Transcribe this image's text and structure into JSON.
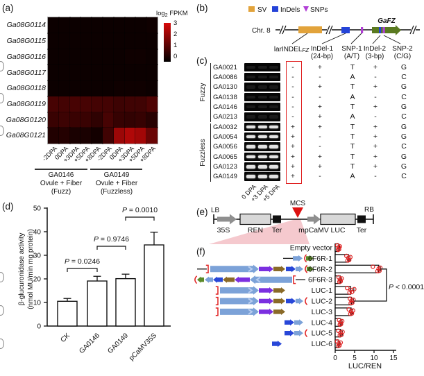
{
  "panel_labels": {
    "a": "(a)",
    "b": "(b)",
    "c": "(c)",
    "d": "(d)",
    "e": "(e)",
    "f": "(f)"
  },
  "heatmap": {
    "legend_title_pre": "log",
    "legend_title_sub": "2",
    "legend_title_post": " FPKM",
    "legend_ticks": [
      "3",
      "2",
      "1",
      "0"
    ],
    "genes": [
      "Ga08G0114",
      "Ga08G0115",
      "Ga08G0116",
      "Ga08G0117",
      "Ga08G0118",
      "Ga08G0119",
      "Ga08G0120",
      "Ga08G0121"
    ],
    "col_labels": [
      "-2DPA",
      "0DPA",
      "+3DPA",
      "+5DPA",
      "+8DPA",
      "-2DPA",
      "0DPA",
      "+3DPA",
      "+5DPA",
      "+8DPA"
    ],
    "group1": {
      "name": "GA0146",
      "tissue": "Ovule + Fiber",
      "pheno": "(Fuzz)"
    },
    "group2": {
      "name": "GA0149",
      "tissue": "Ovule + Fiber",
      "pheno": "(Fuzzless)"
    },
    "vmin": 0,
    "vmax": 3,
    "values": [
      [
        0.05,
        0.05,
        0.05,
        0.05,
        0.05,
        0.05,
        0.05,
        0.05,
        0.05,
        0.1
      ],
      [
        0.05,
        0.05,
        0.05,
        0.05,
        0.05,
        0.05,
        0.05,
        0.05,
        0.05,
        0.05
      ],
      [
        0.05,
        0.05,
        0.05,
        0.05,
        0.05,
        0.05,
        0.05,
        0.1,
        0.1,
        0.05
      ],
      [
        0.05,
        0.05,
        0.05,
        0.05,
        0.05,
        0.05,
        0.05,
        0.05,
        0.05,
        0.05
      ],
      [
        0.05,
        0.05,
        0.05,
        0.05,
        0.05,
        0.05,
        0.1,
        0.1,
        0.1,
        0.05
      ],
      [
        0.9,
        0.85,
        0.9,
        0.9,
        0.85,
        0.85,
        0.75,
        0.8,
        0.8,
        1.0
      ],
      [
        0.7,
        0.75,
        0.7,
        0.7,
        0.55,
        0.9,
        0.65,
        0.6,
        0.65,
        0.45
      ],
      [
        0.35,
        0.4,
        0.25,
        0.25,
        0.15,
        0.8,
        2.1,
        2.4,
        2.2,
        1.4
      ]
    ]
  },
  "locus_map": {
    "legend": [
      {
        "label": "SV"
      },
      {
        "label": "InDels"
      },
      {
        "label": "SNPs"
      }
    ],
    "legend_colors": {
      "sv": "#E2A33B",
      "indel": "#2443D8",
      "snp": "#B13FD6"
    },
    "chrom": "Chr. 8",
    "gene": "GaFZ",
    "gene_color": "#5A7A20",
    "labels": {
      "sv_pre": "larINDEL",
      "sv_sub": "FZ",
      "indel1_1": "InDel-1",
      "indel1_2": "(24-bp)",
      "snp1_1": "SNP-1",
      "snp1_2": "(A/T)",
      "indel2_1": "InDel-2",
      "indel2_2": "(3-bp)",
      "snp2_1": "SNP-2",
      "snp2_2": "(C/G)"
    }
  },
  "genotypes": {
    "group_labels": [
      "Fuzzy",
      "Fuzzless"
    ],
    "lane_labels": [
      "0 DPA",
      "+3 DPA",
      "+5 DPA"
    ],
    "rows": [
      {
        "id": "GA0021",
        "group": "Fuzzy",
        "gel": "faint",
        "calls": [
          "-",
          "+",
          "T",
          "+",
          "G"
        ]
      },
      {
        "id": "GA0086",
        "group": "Fuzzy",
        "gel": "faint",
        "calls": [
          "-",
          "-",
          "A",
          "-",
          "C"
        ]
      },
      {
        "id": "GA0130",
        "group": "Fuzzy",
        "gel": "faint",
        "calls": [
          "-",
          "+",
          "T",
          "+",
          "G"
        ]
      },
      {
        "id": "GA0138",
        "group": "Fuzzy",
        "gel": "faint",
        "calls": [
          "-",
          "-",
          "A",
          "-",
          "C"
        ]
      },
      {
        "id": "GA0146",
        "group": "Fuzzy",
        "gel": "faint",
        "calls": [
          "-",
          "+",
          "T",
          "+",
          "G"
        ]
      },
      {
        "id": "GA0213",
        "group": "Fuzzy",
        "gel": "faint",
        "calls": [
          "-",
          "+",
          "A",
          "-",
          "C"
        ]
      },
      {
        "id": "GA0032",
        "group": "Fuzzless",
        "gel": "bright",
        "calls": [
          "+",
          "+",
          "T",
          "+",
          "G"
        ]
      },
      {
        "id": "GA0054",
        "group": "Fuzzless",
        "gel": "bright",
        "calls": [
          "+",
          "-",
          "T",
          "+",
          "G"
        ]
      },
      {
        "id": "GA0056",
        "group": "Fuzzless",
        "gel": "bright",
        "calls": [
          "+",
          "-",
          "T",
          "+",
          "C"
        ]
      },
      {
        "id": "GA0065",
        "group": "Fuzzless",
        "gel": "bright",
        "calls": [
          "+",
          "+",
          "T",
          "+",
          "G"
        ]
      },
      {
        "id": "GA0123",
        "group": "Fuzzless",
        "gel": "bright",
        "calls": [
          "+",
          "+",
          "T",
          "+",
          "G"
        ]
      },
      {
        "id": "GA0149",
        "group": "Fuzzless",
        "gel": "bright",
        "calls": [
          "+",
          "-",
          "A",
          "-",
          "C"
        ]
      }
    ]
  },
  "gus_chart": {
    "ylabel1": "β-glucuronidase activity",
    "ylabel2": "(nmol MU/min mg protein)",
    "yticks": [
      0,
      10,
      20,
      30,
      40,
      50
    ],
    "ymax": 50,
    "categories": [
      "CK",
      "GA0146",
      "GA0149",
      "pCaMV35S"
    ],
    "values": [
      10.5,
      19.1,
      20.1,
      34.4
    ],
    "errors": [
      1.2,
      2.0,
      1.9,
      5.4
    ],
    "comparisons": [
      {
        "p": "P",
        "rest": " = 0.0246",
        "from": 0,
        "to": 1
      },
      {
        "p": "P",
        "rest": " = 0.9746",
        "from": 1,
        "to": 2
      },
      {
        "p": "P",
        "rest": " = 0.0010",
        "from": 2,
        "to": 3
      }
    ]
  },
  "construct_map": {
    "lb": "LB",
    "rb": "RB",
    "mcs": "MCS",
    "labels": [
      "35S",
      "REN",
      "Ter",
      "mpCaMV",
      "LUC",
      "Ter"
    ]
  },
  "luc_chart": {
    "categories": [
      "Empty vector",
      "6F6R-1",
      "6F6R-2",
      "6F6R-3",
      "LUC-1",
      "LUC-2",
      "LUC-3",
      "LUC-4",
      "LUC-5",
      "LUC-6"
    ],
    "values": [
      0.9,
      3.4,
      11.2,
      1.3,
      4.0,
      4.2,
      4.1,
      1.4,
      1.4,
      0.9
    ],
    "errors": [
      0.25,
      0.4,
      0.45,
      0.3,
      0.8,
      0.5,
      0.45,
      0.35,
      0.45,
      0.3
    ],
    "points": [
      [
        0.55,
        0.75,
        0.9,
        1.0,
        1.2
      ],
      [
        2.9,
        3.2,
        3.4,
        3.6,
        3.9
      ],
      [
        9.7,
        10.9,
        11.2,
        11.4,
        11.6
      ],
      [
        0.9,
        1.1,
        1.3,
        1.4,
        1.7
      ],
      [
        3.1,
        3.7,
        4.0,
        4.3,
        4.9
      ],
      [
        3.8,
        4.0,
        4.2,
        4.4,
        4.7
      ],
      [
        3.5,
        3.9,
        4.1,
        4.3,
        4.6
      ],
      [
        1.0,
        1.2,
        1.4,
        1.5,
        1.8
      ],
      [
        0.8,
        1.2,
        1.4,
        1.6,
        1.9
      ],
      [
        0.5,
        0.8,
        0.9,
        1.1,
        1.4
      ]
    ],
    "xticks": [
      0,
      5,
      10,
      15
    ],
    "xmax": 15,
    "xlabel": "LUC/REN",
    "pvalue_p": "P",
    "pvalue_rest": " < 0.0001",
    "point_color": "#DD2222"
  },
  "chart_data": [
    {
      "type": "heatmap",
      "title": "log2 FPKM",
      "rows": [
        "Ga08G0114",
        "Ga08G0115",
        "Ga08G0116",
        "Ga08G0117",
        "Ga08G0118",
        "Ga08G0119",
        "Ga08G0120",
        "Ga08G0121"
      ],
      "columns": [
        "GA0146 -2DPA",
        "GA0146 0DPA",
        "GA0146 +3DPA",
        "GA0146 +5DPA",
        "GA0146 +8DPA",
        "GA0149 -2DPA",
        "GA0149 0DPA",
        "GA0149 +3DPA",
        "GA0149 +5DPA",
        "GA0149 +8DPA"
      ],
      "scale": [
        0,
        3
      ],
      "values": [
        [
          0.05,
          0.05,
          0.05,
          0.05,
          0.05,
          0.05,
          0.05,
          0.05,
          0.05,
          0.1
        ],
        [
          0.05,
          0.05,
          0.05,
          0.05,
          0.05,
          0.05,
          0.05,
          0.05,
          0.05,
          0.05
        ],
        [
          0.05,
          0.05,
          0.05,
          0.05,
          0.05,
          0.05,
          0.05,
          0.1,
          0.1,
          0.05
        ],
        [
          0.05,
          0.05,
          0.05,
          0.05,
          0.05,
          0.05,
          0.05,
          0.05,
          0.05,
          0.05
        ],
        [
          0.05,
          0.05,
          0.05,
          0.05,
          0.05,
          0.05,
          0.1,
          0.1,
          0.1,
          0.05
        ],
        [
          0.9,
          0.85,
          0.9,
          0.9,
          0.85,
          0.85,
          0.75,
          0.8,
          0.8,
          1.0
        ],
        [
          0.7,
          0.75,
          0.7,
          0.7,
          0.55,
          0.9,
          0.65,
          0.6,
          0.65,
          0.45
        ],
        [
          0.35,
          0.4,
          0.25,
          0.25,
          0.15,
          0.8,
          2.1,
          2.4,
          2.2,
          1.4
        ]
      ]
    },
    {
      "type": "bar",
      "title": "",
      "ylabel": "β-glucuronidase activity (nmol MU/min mg protein)",
      "ylim": [
        0,
        50
      ],
      "categories": [
        "CK",
        "GA0146",
        "GA0149",
        "pCaMV35S"
      ],
      "values": [
        10.5,
        19.1,
        20.1,
        34.4
      ],
      "errors": [
        1.2,
        2.0,
        1.9,
        5.4
      ],
      "annotations": [
        "P = 0.0246 (CK vs GA0146)",
        "P = 0.9746 (GA0146 vs GA0149)",
        "P = 0.0010 (GA0149 vs pCaMV35S)"
      ]
    },
    {
      "type": "bar",
      "orientation": "horizontal",
      "xlabel": "LUC/REN",
      "xlim": [
        0,
        15
      ],
      "categories": [
        "Empty vector",
        "6F6R-1",
        "6F6R-2",
        "6F6R-3",
        "LUC-1",
        "LUC-2",
        "LUC-3",
        "LUC-4",
        "LUC-5",
        "LUC-6"
      ],
      "values": [
        0.9,
        3.4,
        11.2,
        1.3,
        4.0,
        4.2,
        4.1,
        1.4,
        1.4,
        0.9
      ],
      "annotations": [
        "P < 0.0001 (6F6R-2 vs LUC-2)"
      ]
    },
    {
      "type": "table",
      "title": "Genotype calls per accession",
      "columns": [
        "larINDELFZ",
        "InDel-1 (24-bp)",
        "SNP-1 (A/T)",
        "InDel-2 (3-bp)",
        "SNP-2 (C/G)"
      ],
      "rows": [
        {
          "id": "GA0021",
          "phenotype": "Fuzzy",
          "calls": [
            "-",
            "+",
            "T",
            "+",
            "G"
          ]
        },
        {
          "id": "GA0086",
          "phenotype": "Fuzzy",
          "calls": [
            "-",
            "-",
            "A",
            "-",
            "C"
          ]
        },
        {
          "id": "GA0130",
          "phenotype": "Fuzzy",
          "calls": [
            "-",
            "+",
            "T",
            "+",
            "G"
          ]
        },
        {
          "id": "GA0138",
          "phenotype": "Fuzzy",
          "calls": [
            "-",
            "-",
            "A",
            "-",
            "C"
          ]
        },
        {
          "id": "GA0146",
          "phenotype": "Fuzzy",
          "calls": [
            "-",
            "+",
            "T",
            "+",
            "G"
          ]
        },
        {
          "id": "GA0213",
          "phenotype": "Fuzzy",
          "calls": [
            "-",
            "+",
            "A",
            "-",
            "C"
          ]
        },
        {
          "id": "GA0032",
          "phenotype": "Fuzzless",
          "calls": [
            "+",
            "+",
            "T",
            "+",
            "G"
          ]
        },
        {
          "id": "GA0054",
          "phenotype": "Fuzzless",
          "calls": [
            "+",
            "-",
            "T",
            "+",
            "G"
          ]
        },
        {
          "id": "GA0056",
          "phenotype": "Fuzzless",
          "calls": [
            "+",
            "-",
            "T",
            "+",
            "C"
          ]
        },
        {
          "id": "GA0065",
          "phenotype": "Fuzzless",
          "calls": [
            "+",
            "+",
            "T",
            "+",
            "G"
          ]
        },
        {
          "id": "GA0123",
          "phenotype": "Fuzzless",
          "calls": [
            "+",
            "+",
            "T",
            "+",
            "G"
          ]
        },
        {
          "id": "GA0149",
          "phenotype": "Fuzzless",
          "calls": [
            "+",
            "-",
            "A",
            "-",
            "C"
          ]
        }
      ]
    }
  ]
}
